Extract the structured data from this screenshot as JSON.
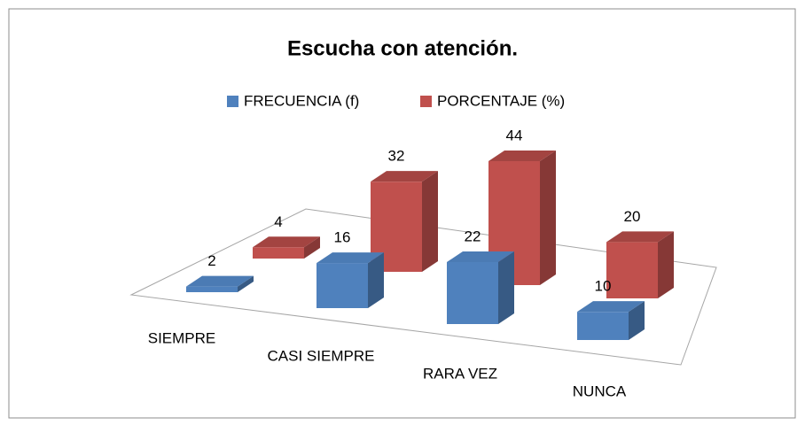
{
  "chart_data": {
    "type": "bar3d",
    "title": "Escucha con atención.",
    "categories": [
      "SIEMPRE",
      "CASI SIEMPRE",
      "RARA VEZ",
      "NUNCA"
    ],
    "series": [
      {
        "name": "FRECUENCIA (f)",
        "color": "#4f81bd",
        "values": [
          2,
          16,
          22,
          10
        ]
      },
      {
        "name": "PORCENTAJE (%)",
        "color": "#c0504d",
        "values": [
          4,
          32,
          44,
          20
        ]
      }
    ],
    "legend": "top"
  }
}
